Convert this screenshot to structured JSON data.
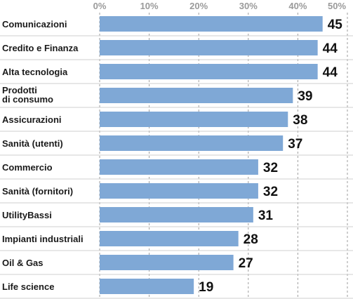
{
  "chart_data": {
    "type": "bar",
    "orientation": "horizontal",
    "categories": [
      "Comunicazioni",
      "Credito e Finanza",
      "Alta tecnologia",
      "Prodotti\ndi consumo",
      "Assicurazioni",
      "Sanità (utenti)",
      "Commercio",
      "Sanità (fornitori)",
      "UtilityBassi",
      "Impianti industriali",
      "Oil & Gas",
      "Life science"
    ],
    "values": [
      45,
      44,
      44,
      39,
      38,
      37,
      32,
      32,
      31,
      28,
      27,
      19
    ],
    "value_labels": [
      "45",
      "44",
      "44",
      "39",
      "38",
      "37",
      "32",
      "32",
      "31",
      "28",
      "27",
      "19"
    ],
    "xticks": [
      "0%",
      "10%",
      "20%",
      "30%",
      "40%",
      "50%"
    ],
    "xlim": [
      0,
      50
    ],
    "grid": "vertical dashed",
    "colors": {
      "bar": "#7fa8d6",
      "grid": "#9e9e9e",
      "separator": "#cfcfcf",
      "tick_text": "#9a9a9a",
      "label_text": "#1a1a1a"
    }
  }
}
